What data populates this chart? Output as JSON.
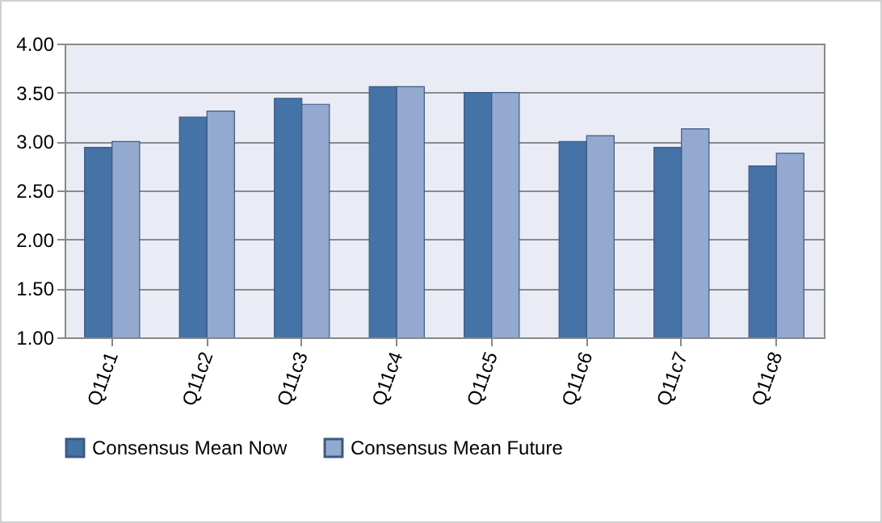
{
  "chart_data": {
    "type": "bar",
    "categories": [
      "Q11c1",
      "Q11c2",
      "Q11c3",
      "Q11c4",
      "Q11c5",
      "Q11c6",
      "Q11c7",
      "Q11c8"
    ],
    "series": [
      {
        "name": "Consensus Mean Now",
        "color": "#4572a7",
        "values": [
          2.94,
          3.25,
          3.44,
          3.56,
          3.5,
          3.0,
          2.94,
          2.75
        ]
      },
      {
        "name": "Consensus Mean Future",
        "color": "#93a9cf",
        "values": [
          3.0,
          3.31,
          3.38,
          3.56,
          3.5,
          3.06,
          3.13,
          2.88
        ]
      }
    ],
    "ylim": [
      1,
      4
    ],
    "yticks": [
      {
        "value": 1,
        "label": "1.00"
      },
      {
        "value": 1.5,
        "label": "1.50"
      },
      {
        "value": 2,
        "label": "2.00"
      },
      {
        "value": 2.5,
        "label": "2.50"
      },
      {
        "value": 3,
        "label": "3.00"
      },
      {
        "value": 3.5,
        "label": "3.50"
      },
      {
        "value": 4,
        "label": "4.00"
      }
    ],
    "grid": "y",
    "legend": "bottom"
  }
}
